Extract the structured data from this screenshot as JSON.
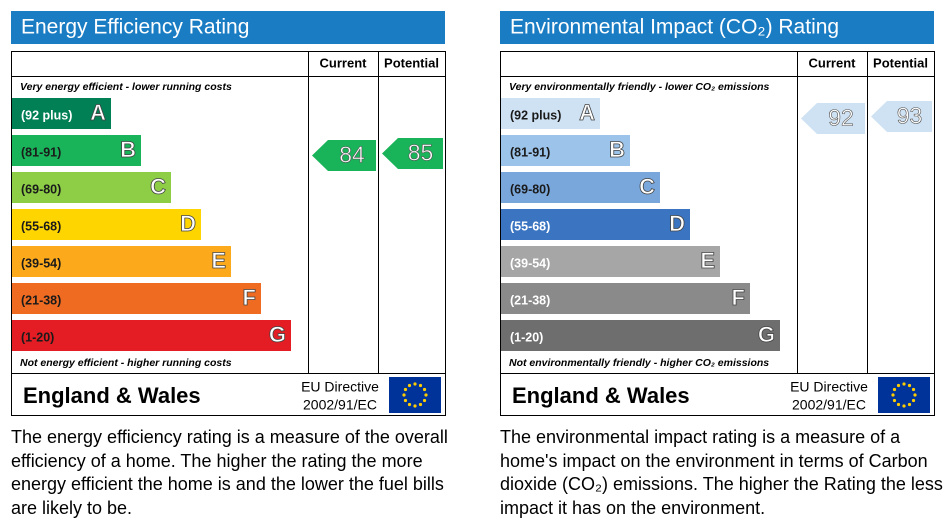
{
  "panels": [
    {
      "title": "Energy Efficiency Rating",
      "headers": [
        "Current",
        "Potential"
      ],
      "top_note": "Very energy efficient - lower running costs",
      "bottom_note": "Not energy efficient - higher running costs",
      "bands": [
        {
          "range": "(92 plus)",
          "letter": "A",
          "color": "#008054",
          "text_color": "#ffffff"
        },
        {
          "range": "(81-91)",
          "letter": "B",
          "color": "#19b459",
          "text_color": "#1a1a1a"
        },
        {
          "range": "(69-80)",
          "letter": "C",
          "color": "#8dce46",
          "text_color": "#1a1a1a"
        },
        {
          "range": "(55-68)",
          "letter": "D",
          "color": "#ffd500",
          "text_color": "#1a1a1a"
        },
        {
          "range": "(39-54)",
          "letter": "E",
          "color": "#fcaa1c",
          "text_color": "#1a1a1a"
        },
        {
          "range": "(21-38)",
          "letter": "F",
          "color": "#ef6b21",
          "text_color": "#1a1a1a"
        },
        {
          "range": "(1-20)",
          "letter": "G",
          "color": "#e31d23",
          "text_color": "#1a1a1a"
        }
      ],
      "current": 84,
      "potential": 85,
      "footer": {
        "region": "England & Wales",
        "directive": [
          "EU Directive",
          "2002/91/EC"
        ]
      },
      "description": "The energy efficiency rating is a measure of the overall efficiency of a home. The higher the rating the more energy efficient the home is and the lower the fuel bills are likely to be."
    },
    {
      "title": "Environmental Impact (CO₂) Rating",
      "headers": [
        "Current",
        "Potential"
      ],
      "top_note": "Very environmentally friendly - lower CO₂ emissions",
      "bottom_note": "Not environmentally friendly - higher CO₂ emissions",
      "bands": [
        {
          "range": "(92 plus)",
          "letter": "A",
          "color": "#cfe2f3",
          "text_color": "#1a1a1a"
        },
        {
          "range": "(81-91)",
          "letter": "B",
          "color": "#9cc3e9",
          "text_color": "#1a1a1a"
        },
        {
          "range": "(69-80)",
          "letter": "C",
          "color": "#79a7dc",
          "text_color": "#1a1a1a"
        },
        {
          "range": "(55-68)",
          "letter": "D",
          "color": "#3b74c1",
          "text_color": "#ffffff"
        },
        {
          "range": "(39-54)",
          "letter": "E",
          "color": "#a6a6a6",
          "text_color": "#ffffff"
        },
        {
          "range": "(21-38)",
          "letter": "F",
          "color": "#8a8a8a",
          "text_color": "#ffffff"
        },
        {
          "range": "(1-20)",
          "letter": "G",
          "color": "#6e6e6e",
          "text_color": "#ffffff"
        }
      ],
      "current": 92,
      "potential": 93,
      "footer": {
        "region": "England & Wales",
        "directive": [
          "EU Directive",
          "2002/91/EC"
        ]
      },
      "description": "The environmental impact rating is a measure of a home's impact on the environment in terms of Carbon dioxide (CO₂) emissions. The higher the Rating the less impact it has on the environment."
    }
  ]
}
